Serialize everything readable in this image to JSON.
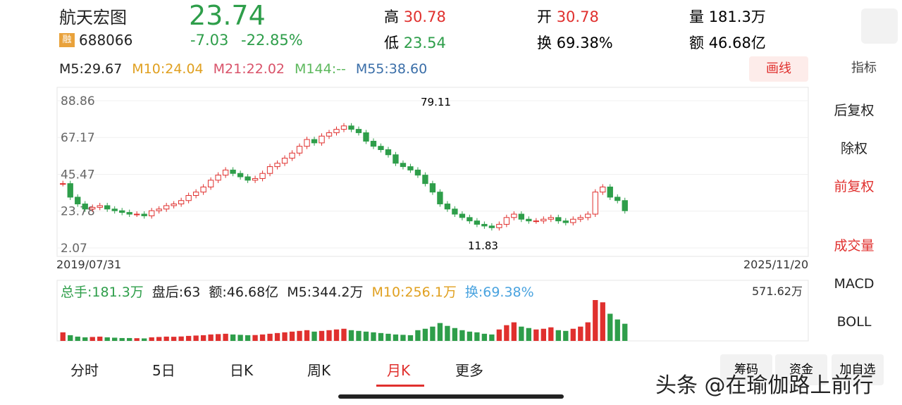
{
  "header": {
    "name": "航天宏图",
    "price": "23.74",
    "change": "-7.03",
    "pct": "-22.85%",
    "tag": "融",
    "code": "688066",
    "high_label": "高",
    "high": "30.78",
    "low_label": "低",
    "low": "23.54",
    "open_label": "开",
    "open": "30.78",
    "turnover_label": "换",
    "turnover": "69.38%",
    "vol_label": "量",
    "vol": "181.3万",
    "amt_label": "额",
    "amt": "46.68亿"
  },
  "ma": [
    {
      "text": "M5:29.67",
      "color": "#222"
    },
    {
      "text": "M10:24.04",
      "color": "#e0a020"
    },
    {
      "text": "M21:22.02",
      "color": "#d9536a"
    },
    {
      "text": "M144:--",
      "color": "#5cb85c"
    },
    {
      "text": "M55:38.60",
      "color": "#3a6ea8"
    }
  ],
  "draw_button": "画线",
  "indicator": "指标",
  "annotations": [
    "79.11",
    "11.83"
  ],
  "dates": [
    "2019/07/31",
    "2025/11/20"
  ],
  "volume_stats": [
    "总手:181.3万",
    "盘后:63",
    "额:46.68亿",
    "M5:344.2万",
    "M10:256.1万",
    "换:69.38%"
  ],
  "volume_max": "571.62万",
  "menu": [
    "后复权",
    "除权",
    "前复权",
    "成交量",
    "MACD",
    "BOLL"
  ],
  "tabs": [
    "分时",
    "5日",
    "日K",
    "周K",
    "月K",
    "更多"
  ],
  "bottom": [
    "筹码",
    "资金",
    "加自选"
  ],
  "watermark": "头条 @在瑜伽路上前行",
  "chart_data": {
    "type": "candlestick",
    "ylim": [
      2.07,
      88.86
    ],
    "yticks": [
      88.86,
      67.17,
      45.47,
      23.78,
      2.07
    ],
    "values": [
      40,
      32,
      28,
      25,
      26,
      27,
      25,
      24,
      23,
      22,
      22,
      21,
      24,
      25,
      27,
      28,
      30,
      33,
      35,
      38,
      42,
      45,
      48,
      46,
      44,
      42,
      43,
      46,
      50,
      52,
      55,
      58,
      62,
      66,
      64,
      68,
      70,
      72,
      74,
      72,
      70,
      65,
      62,
      60,
      57,
      52,
      50,
      48,
      45,
      40,
      35,
      28,
      25,
      22,
      20,
      18,
      16,
      15,
      14,
      16,
      20,
      22,
      19,
      18,
      18,
      19,
      20,
      18,
      17,
      19,
      20,
      22,
      35,
      38,
      32,
      30,
      24
    ],
    "volume": [
      120,
      80,
      60,
      50,
      55,
      60,
      50,
      45,
      40,
      40,
      38,
      35,
      50,
      55,
      60,
      58,
      62,
      70,
      75,
      80,
      90,
      95,
      100,
      90,
      85,
      80,
      82,
      90,
      100,
      110,
      120,
      130,
      140,
      150,
      130,
      140,
      150,
      160,
      170,
      150,
      140,
      130,
      120,
      110,
      100,
      90,
      85,
      80,
      150,
      170,
      200,
      250,
      210,
      180,
      150,
      130,
      120,
      100,
      90,
      160,
      220,
      260,
      200,
      180,
      160,
      170,
      190,
      150,
      140,
      170,
      200,
      260,
      571.62,
      540,
      380,
      300,
      240
    ]
  }
}
